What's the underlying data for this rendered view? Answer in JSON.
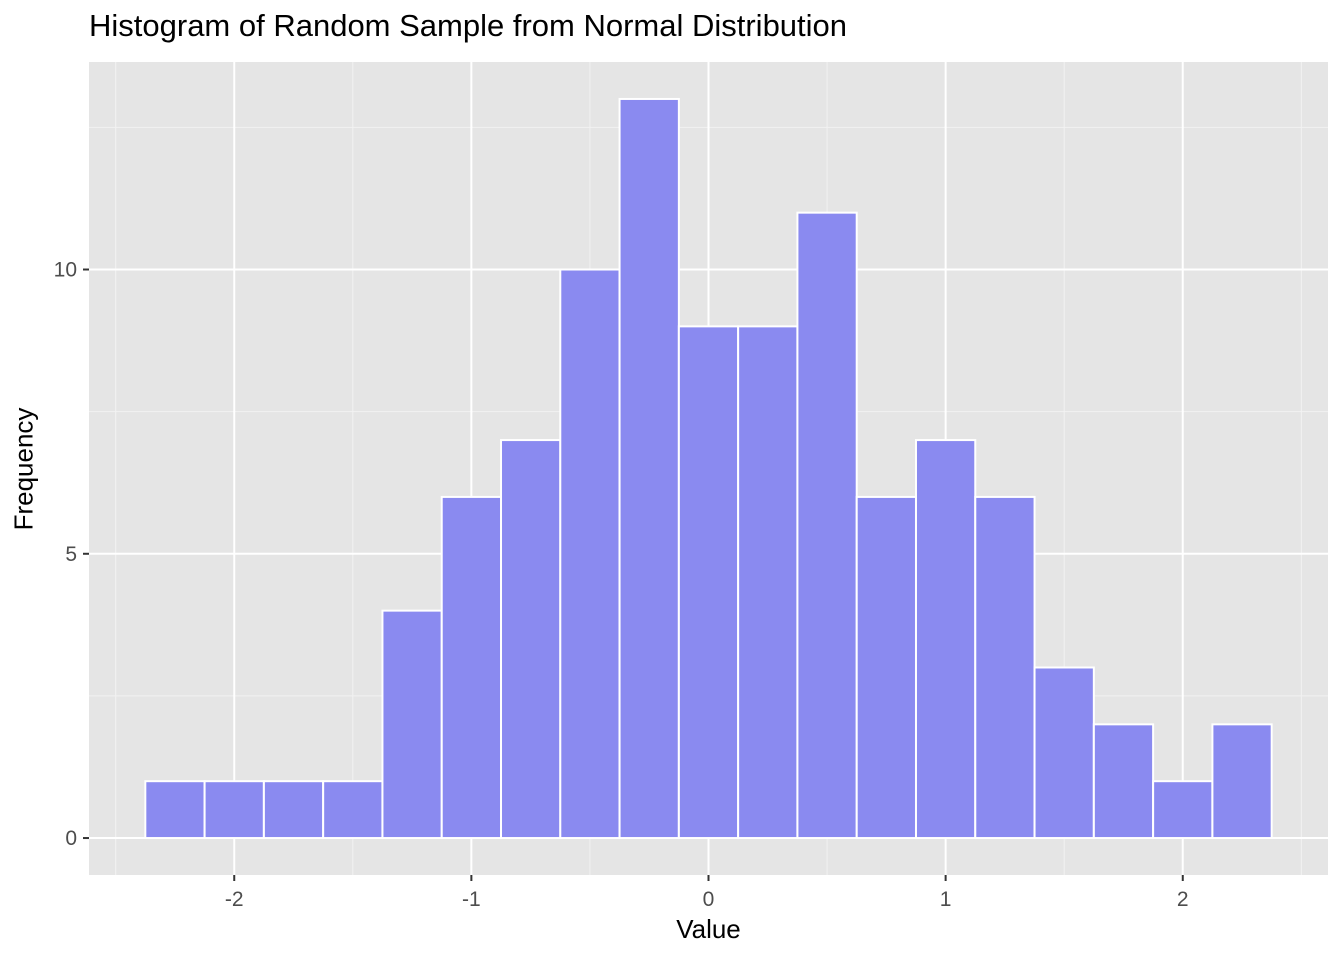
{
  "chart_data": {
    "type": "bar",
    "title": "Histogram of Random Sample from Normal Distribution",
    "xlabel": "Value",
    "ylabel": "Frequency",
    "bin_width": 0.25,
    "bins": [
      {
        "x0": -2.375,
        "x1": -2.125,
        "count": 1
      },
      {
        "x0": -2.125,
        "x1": -1.875,
        "count": 1
      },
      {
        "x0": -1.875,
        "x1": -1.625,
        "count": 1
      },
      {
        "x0": -1.625,
        "x1": -1.375,
        "count": 1
      },
      {
        "x0": -1.375,
        "x1": -1.125,
        "count": 4
      },
      {
        "x0": -1.125,
        "x1": -0.875,
        "count": 6
      },
      {
        "x0": -0.875,
        "x1": -0.625,
        "count": 7
      },
      {
        "x0": -0.625,
        "x1": -0.375,
        "count": 10
      },
      {
        "x0": -0.375,
        "x1": -0.125,
        "count": 13
      },
      {
        "x0": -0.125,
        "x1": 0.125,
        "count": 9
      },
      {
        "x0": 0.125,
        "x1": 0.375,
        "count": 9
      },
      {
        "x0": 0.375,
        "x1": 0.625,
        "count": 11
      },
      {
        "x0": 0.625,
        "x1": 0.875,
        "count": 6
      },
      {
        "x0": 0.875,
        "x1": 1.125,
        "count": 7
      },
      {
        "x0": 1.125,
        "x1": 1.375,
        "count": 6
      },
      {
        "x0": 1.375,
        "x1": 1.625,
        "count": 3
      },
      {
        "x0": 1.625,
        "x1": 1.875,
        "count": 2
      },
      {
        "x0": 1.875,
        "x1": 2.125,
        "count": 1
      },
      {
        "x0": 2.125,
        "x1": 2.375,
        "count": 2
      }
    ],
    "xlim": [
      -2.6125,
      2.6125
    ],
    "ylim": [
      -0.65,
      13.65
    ],
    "x_ticks": [
      -2,
      -1,
      0,
      1,
      2
    ],
    "x_tick_labels": [
      "-2",
      "-1",
      "0",
      "1",
      "2"
    ],
    "y_ticks": [
      0,
      5,
      10
    ],
    "y_tick_labels": [
      "0",
      "5",
      "10"
    ],
    "grid": true,
    "colors": {
      "panel_background": "#e5e5e5",
      "grid_major": "#ffffff",
      "grid_minor": "#f2f2f2",
      "bar_fill": "#8a8af0",
      "bar_outline": "#ffffff",
      "tick_label": "#4d4d4d"
    }
  }
}
